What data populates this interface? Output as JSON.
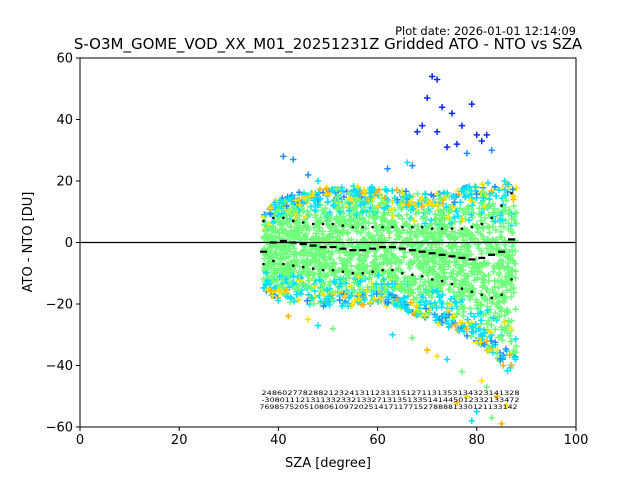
{
  "chart_data": {
    "type": "scatter",
    "plot_date": "Plot date: 2026-01-01 12:14:09",
    "title": "S-O3M_GOME_VOD_XX_M01_20251231Z Gridded ATO - NTO vs SZA",
    "xlabel": "SZA [degree]",
    "ylabel": "ATO - NTO [DU]",
    "xlim": [
      0,
      100
    ],
    "ylim": [
      -60,
      60
    ],
    "x_ticks": [
      0,
      20,
      40,
      60,
      80,
      100
    ],
    "y_ticks": [
      -60,
      -40,
      -20,
      0,
      20,
      40,
      60
    ],
    "x_tick_labels": [
      "0",
      "20",
      "40",
      "60",
      "80",
      "100"
    ],
    "y_tick_labels": [
      "−60",
      "−40",
      "−20",
      "0",
      "20",
      "40",
      "60"
    ],
    "zero_line": 0,
    "marker": "+",
    "point_cloud": {
      "sza_range": [
        37,
        88
      ],
      "core_color": "#6dff7a",
      "edge_colors": [
        "#00e0ff",
        "#1f8cff",
        "#ffe100",
        "#ffb200",
        "#0a2bff"
      ],
      "upper_envelope": [
        [
          37,
          10
        ],
        [
          40,
          15
        ],
        [
          45,
          17
        ],
        [
          50,
          18
        ],
        [
          55,
          19
        ],
        [
          60,
          18
        ],
        [
          65,
          17
        ],
        [
          70,
          16
        ],
        [
          75,
          17
        ],
        [
          80,
          19
        ],
        [
          84,
          20
        ],
        [
          88,
          22
        ]
      ],
      "lower_envelope": [
        [
          37,
          -15
        ],
        [
          40,
          -19
        ],
        [
          45,
          -20
        ],
        [
          50,
          -21
        ],
        [
          55,
          -21
        ],
        [
          60,
          -20
        ],
        [
          65,
          -22
        ],
        [
          70,
          -25
        ],
        [
          75,
          -28
        ],
        [
          80,
          -33
        ],
        [
          84,
          -38
        ],
        [
          88,
          -45
        ]
      ]
    },
    "outliers_high": [
      [
        71,
        54
      ],
      [
        72,
        53
      ],
      [
        70,
        47
      ],
      [
        73,
        44
      ],
      [
        75,
        42
      ],
      [
        79,
        45
      ],
      [
        77,
        38
      ],
      [
        80,
        35
      ],
      [
        82,
        35
      ],
      [
        68,
        36
      ],
      [
        69,
        38
      ],
      [
        72,
        36
      ],
      [
        74,
        31
      ],
      [
        76,
        32
      ],
      [
        78,
        29
      ],
      [
        81,
        33
      ],
      [
        83,
        30
      ],
      [
        62,
        24
      ],
      [
        66,
        26
      ],
      [
        67,
        25
      ],
      [
        46,
        22
      ],
      [
        48,
        20
      ],
      [
        41,
        28
      ],
      [
        43,
        27
      ]
    ],
    "outliers_low": [
      [
        76,
        -52
      ],
      [
        78,
        -50
      ],
      [
        80,
        -55
      ],
      [
        82,
        -47
      ],
      [
        84,
        -50
      ],
      [
        86,
        -53
      ],
      [
        79,
        -58
      ],
      [
        83,
        -57
      ],
      [
        85,
        -59
      ],
      [
        81,
        -45
      ],
      [
        74,
        -38
      ],
      [
        77,
        -42
      ],
      [
        70,
        -35
      ],
      [
        72,
        -37
      ],
      [
        63,
        -30
      ],
      [
        67,
        -31
      ],
      [
        42,
        -24
      ],
      [
        46,
        -25
      ],
      [
        48,
        -27
      ],
      [
        51,
        -28
      ],
      [
        87,
        -40
      ]
    ],
    "series": [
      {
        "name": "mean",
        "style": "dash",
        "color": "#000000",
        "x": [
          37,
          39,
          41,
          43,
          45,
          47,
          49,
          51,
          53,
          55,
          57,
          59,
          61,
          63,
          65,
          67,
          69,
          71,
          73,
          75,
          77,
          79,
          81,
          83,
          85,
          87
        ],
        "y": [
          -3,
          0,
          0.5,
          0,
          -0.5,
          -1,
          -1.5,
          -1.5,
          -2,
          -2.5,
          -2.5,
          -2,
          -1.5,
          -1.5,
          -2,
          -2.5,
          -3,
          -3.5,
          -4,
          -4.5,
          -5,
          -5.5,
          -5,
          -4,
          -3,
          1
        ]
      },
      {
        "name": "upper_std",
        "style": "dot",
        "color": "#000000",
        "x": [
          37,
          39,
          41,
          43,
          45,
          47,
          49,
          51,
          53,
          55,
          57,
          59,
          61,
          63,
          65,
          67,
          69,
          71,
          73,
          75,
          77,
          79,
          81,
          83,
          85,
          87
        ],
        "y": [
          7,
          8,
          8,
          7,
          6.5,
          6,
          6,
          6,
          5.5,
          5,
          5,
          5,
          5,
          5,
          5,
          5,
          5,
          4.5,
          4.5,
          4.5,
          4.5,
          5,
          6,
          8,
          12,
          16
        ]
      },
      {
        "name": "lower_std",
        "style": "dot",
        "color": "#000000",
        "x": [
          37,
          39,
          41,
          43,
          45,
          47,
          49,
          51,
          53,
          55,
          57,
          59,
          61,
          63,
          65,
          67,
          69,
          71,
          73,
          75,
          77,
          79,
          81,
          83,
          85,
          87
        ],
        "y": [
          -7,
          -6,
          -7,
          -7.5,
          -8,
          -8.5,
          -9,
          -9,
          -9.5,
          -10,
          -10,
          -9.5,
          -9,
          -9,
          -10,
          -10.5,
          -11,
          -12,
          -12.5,
          -13.5,
          -15,
          -16,
          -17,
          -18,
          -17,
          -12
        ]
      }
    ],
    "stats_text_rows": [
      "24860277828821232413112313151271131353134323141328",
      "-30801112131133233213327131351335141445012332133472",
      "7698575205108061097202514171177152788881330121133142"
    ]
  }
}
